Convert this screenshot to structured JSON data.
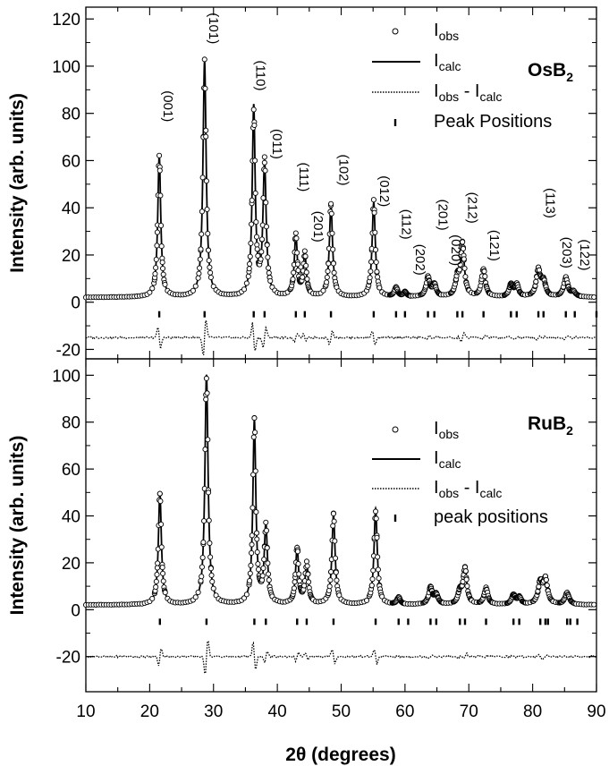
{
  "chart_data": [
    {
      "type": "scatter",
      "sample": {
        "main": "OsB",
        "sub": "2"
      },
      "ylabel": "Intensity (arb. units)",
      "xlabel": "2θ (degrees)",
      "xlim": [
        10,
        90
      ],
      "ylim": [
        -24,
        125
      ],
      "yticks": [
        -20,
        0,
        20,
        40,
        60,
        80,
        100,
        120
      ],
      "legend": {
        "position": "top-right",
        "entries": [
          {
            "marker": "open-circle",
            "main": "I",
            "sub": "obs"
          },
          {
            "marker": "solid-line",
            "main": "I",
            "sub": "calc"
          },
          {
            "marker": "dotted-line",
            "main": "I",
            "sub": "obs",
            "main2": " - I",
            "sub2": "calc"
          },
          {
            "marker": "tick",
            "main": "Peak Positions"
          }
        ]
      },
      "difference_offset": -15,
      "background": 2,
      "peaks": [
        {
          "x": 21.5,
          "y": 60,
          "w": 0.28
        },
        {
          "x": 28.6,
          "y": 100,
          "w": 0.3
        },
        {
          "x": 36.3,
          "y": 80,
          "w": 0.28
        },
        {
          "x": 38.0,
          "y": 56,
          "w": 0.3
        },
        {
          "x": 42.9,
          "y": 26,
          "w": 0.28
        },
        {
          "x": 44.3,
          "y": 18,
          "w": 0.28
        },
        {
          "x": 48.4,
          "y": 39,
          "w": 0.3
        },
        {
          "x": 55.1,
          "y": 40,
          "w": 0.3
        },
        {
          "x": 58.6,
          "y": 4,
          "w": 0.3
        },
        {
          "x": 60.0,
          "y": 2,
          "w": 0.3
        },
        {
          "x": 63.6,
          "y": 8,
          "w": 0.35
        },
        {
          "x": 64.6,
          "y": 5,
          "w": 0.35
        },
        {
          "x": 68.2,
          "y": 7,
          "w": 0.35
        },
        {
          "x": 69.0,
          "y": 22,
          "w": 0.35
        },
        {
          "x": 72.3,
          "y": 12,
          "w": 0.35
        },
        {
          "x": 76.6,
          "y": 5,
          "w": 0.35
        },
        {
          "x": 77.5,
          "y": 5,
          "w": 0.35
        },
        {
          "x": 80.9,
          "y": 11,
          "w": 0.4
        },
        {
          "x": 81.7,
          "y": 6,
          "w": 0.4
        },
        {
          "x": 85.2,
          "y": 8,
          "w": 0.4
        },
        {
          "x": 86.4,
          "y": 2,
          "w": 0.4
        }
      ],
      "peak_positions": [
        21.5,
        28.6,
        36.3,
        38.0,
        42.9,
        44.3,
        48.4,
        55.1,
        58.6,
        60.0,
        63.6,
        64.6,
        68.2,
        69.0,
        72.3,
        76.6,
        77.5,
        80.9,
        81.7,
        85.2,
        86.6,
        90.0
      ],
      "annotations": [
        {
          "text": "(001)",
          "x": 21.5,
          "y": 83
        },
        {
          "text": "(101)",
          "x": 28.6,
          "y": 116
        },
        {
          "text": "(110)",
          "x": 36.0,
          "y": 96
        },
        {
          "text": "(011)",
          "x": 38.6,
          "y": 67
        },
        {
          "text": "(111)",
          "x": 42.8,
          "y": 53
        },
        {
          "text": "(201)",
          "x": 45.0,
          "y": 32
        },
        {
          "text": "(102)",
          "x": 49.0,
          "y": 56
        },
        {
          "text": "(012)",
          "x": 55.4,
          "y": 47
        },
        {
          "text": "(112)",
          "x": 58.8,
          "y": 33
        },
        {
          "text": "(202)",
          "x": 61.0,
          "y": 18
        },
        {
          "text": "(201)",
          "x": 64.6,
          "y": 37
        },
        {
          "text": "(020)",
          "x": 66.6,
          "y": 22
        },
        {
          "text": "(212)",
          "x": 69.2,
          "y": 40
        },
        {
          "text": "(121)",
          "x": 72.6,
          "y": 24
        },
        {
          "text": "(113)",
          "x": 81.4,
          "y": 42
        },
        {
          "text": "(203)",
          "x": 84.0,
          "y": 21
        },
        {
          "text": "(122)",
          "x": 86.8,
          "y": 20
        }
      ]
    },
    {
      "type": "scatter",
      "sample": {
        "main": "RuB",
        "sub": "2"
      },
      "ylabel": "Intensity (arb. units)",
      "xlabel": "2θ (degrees)",
      "xlim": [
        10,
        90
      ],
      "ylim": [
        -35,
        107
      ],
      "yticks": [
        -20,
        0,
        20,
        40,
        60,
        80,
        100
      ],
      "legend": {
        "position": "top-right",
        "entries": [
          {
            "marker": "open-circle",
            "main": "I",
            "sub": "obs"
          },
          {
            "marker": "solid-line",
            "main": "I",
            "sub": "calc"
          },
          {
            "marker": "dotted-line",
            "main": "I",
            "sub": "obs",
            "main2": " - I",
            "sub2": "calc"
          },
          {
            "marker": "tick",
            "main": "peak positions"
          }
        ]
      },
      "difference_offset": -20,
      "background": 2,
      "peaks": [
        {
          "x": 21.6,
          "y": 48,
          "w": 0.28
        },
        {
          "x": 28.9,
          "y": 98,
          "w": 0.3
        },
        {
          "x": 36.4,
          "y": 78,
          "w": 0.28
        },
        {
          "x": 38.2,
          "y": 33,
          "w": 0.3
        },
        {
          "x": 43.1,
          "y": 24,
          "w": 0.28
        },
        {
          "x": 44.6,
          "y": 17,
          "w": 0.3
        },
        {
          "x": 48.8,
          "y": 38,
          "w": 0.3
        },
        {
          "x": 55.4,
          "y": 41,
          "w": 0.3
        },
        {
          "x": 59.0,
          "y": 3,
          "w": 0.3
        },
        {
          "x": 64.0,
          "y": 7,
          "w": 0.35
        },
        {
          "x": 64.9,
          "y": 4,
          "w": 0.35
        },
        {
          "x": 68.6,
          "y": 5,
          "w": 0.35
        },
        {
          "x": 69.4,
          "y": 15,
          "w": 0.35
        },
        {
          "x": 72.7,
          "y": 7,
          "w": 0.35
        },
        {
          "x": 77.0,
          "y": 4,
          "w": 0.35
        },
        {
          "x": 77.9,
          "y": 3,
          "w": 0.35
        },
        {
          "x": 81.2,
          "y": 9,
          "w": 0.4
        },
        {
          "x": 82.0,
          "y": 10,
          "w": 0.4
        },
        {
          "x": 85.4,
          "y": 5,
          "w": 0.4
        }
      ],
      "peak_positions": [
        21.6,
        28.9,
        36.4,
        38.2,
        43.1,
        44.6,
        48.8,
        55.4,
        59.0,
        60.5,
        64.0,
        64.9,
        68.6,
        69.4,
        72.7,
        77.0,
        77.9,
        81.2,
        82.0,
        82.4,
        85.4,
        85.9,
        87.0
      ],
      "annotations": []
    }
  ]
}
